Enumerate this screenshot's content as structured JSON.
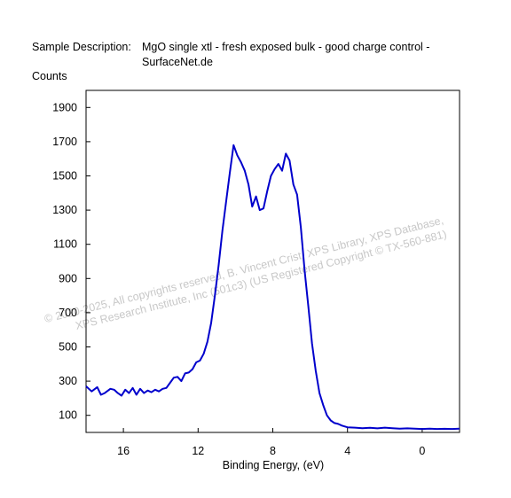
{
  "description": {
    "label": "Sample Description:",
    "line1": "MgO single xtl - fresh exposed bulk - good charge control -",
    "line2": "SurfaceNet.de"
  },
  "watermark": {
    "line1": "© 2020-2025,  All copyrights reserved,  B. Vincent Crist,  XPS Library, XPS Database,",
    "line2": "XPS Research Institute, Inc (501c3)  (US Registered Copyright © TX-560-881)"
  },
  "chart_data": {
    "type": "line",
    "title": "",
    "xlabel": "Binding Energy, (eV)",
    "ylabel": "Counts",
    "xlim": [
      18,
      -2
    ],
    "ylim": [
      0,
      2000
    ],
    "x_reversed": true,
    "x_ticks": [
      16,
      12,
      8,
      4,
      0
    ],
    "y_ticks": [
      100,
      300,
      500,
      700,
      900,
      1100,
      1300,
      1500,
      1700,
      1900
    ],
    "line_color": "#0000cc",
    "series": [
      {
        "x": [
          18.0,
          17.7,
          17.4,
          17.2,
          17.0,
          16.7,
          16.5,
          16.3,
          16.1,
          15.9,
          15.7,
          15.5,
          15.3,
          15.1,
          14.9,
          14.7,
          14.5,
          14.3,
          14.1,
          13.9,
          13.7,
          13.5,
          13.3,
          13.1,
          12.9,
          12.7,
          12.5,
          12.3,
          12.1,
          11.9,
          11.7,
          11.5,
          11.3,
          11.1,
          10.9,
          10.7,
          10.5,
          10.3,
          10.1,
          9.9,
          9.7,
          9.5,
          9.3,
          9.1,
          8.9,
          8.7,
          8.5,
          8.3,
          8.1,
          7.9,
          7.7,
          7.5,
          7.3,
          7.1,
          6.9,
          6.7,
          6.5,
          6.3,
          6.1,
          5.9,
          5.7,
          5.5,
          5.3,
          5.1,
          4.9,
          4.7,
          4.5,
          4.3,
          4.0,
          3.6,
          3.2,
          2.8,
          2.4,
          2.0,
          1.6,
          1.2,
          0.8,
          0.4,
          0.0,
          -0.4,
          -0.8,
          -1.2,
          -1.6,
          -2.0
        ],
        "y": [
          270,
          240,
          265,
          220,
          230,
          255,
          250,
          230,
          215,
          250,
          230,
          260,
          220,
          255,
          230,
          245,
          235,
          250,
          240,
          255,
          260,
          290,
          320,
          325,
          300,
          345,
          350,
          370,
          410,
          420,
          460,
          530,
          640,
          800,
          980,
          1180,
          1350,
          1520,
          1680,
          1620,
          1580,
          1530,
          1450,
          1320,
          1380,
          1300,
          1310,
          1410,
          1500,
          1540,
          1570,
          1530,
          1630,
          1590,
          1450,
          1390,
          1200,
          950,
          740,
          520,
          360,
          230,
          160,
          100,
          70,
          55,
          50,
          40,
          30,
          28,
          25,
          27,
          24,
          28,
          25,
          22,
          24,
          22,
          20,
          22,
          20,
          21,
          20,
          22
        ]
      }
    ]
  }
}
